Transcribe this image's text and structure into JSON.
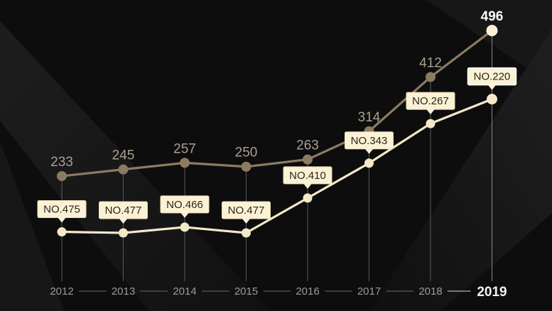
{
  "chart_data": {
    "type": "line",
    "x": [
      "2012",
      "2013",
      "2014",
      "2015",
      "2016",
      "2017",
      "2018",
      "2019"
    ],
    "series": [
      {
        "values": [
          233,
          245,
          257,
          250,
          263,
          314,
          412,
          496
        ]
      },
      {
        "values": [
          475,
          477,
          466,
          477,
          410,
          343,
          267,
          220
        ],
        "labels": [
          "NO.475",
          "NO.477",
          "NO.466",
          "NO.477",
          "NO.410",
          "NO.343",
          "NO.267",
          "NO.220"
        ]
      }
    ],
    "title": "",
    "xlabel": "",
    "ylabel": "",
    "legend": "none",
    "grid": false,
    "colors": {
      "background": "#0d0d0d",
      "series_top": "#8b7b63",
      "series_bottom": "#f3e8c8",
      "rank_box": "#fbf2d6",
      "axis_text": "#9c9c9c"
    }
  }
}
